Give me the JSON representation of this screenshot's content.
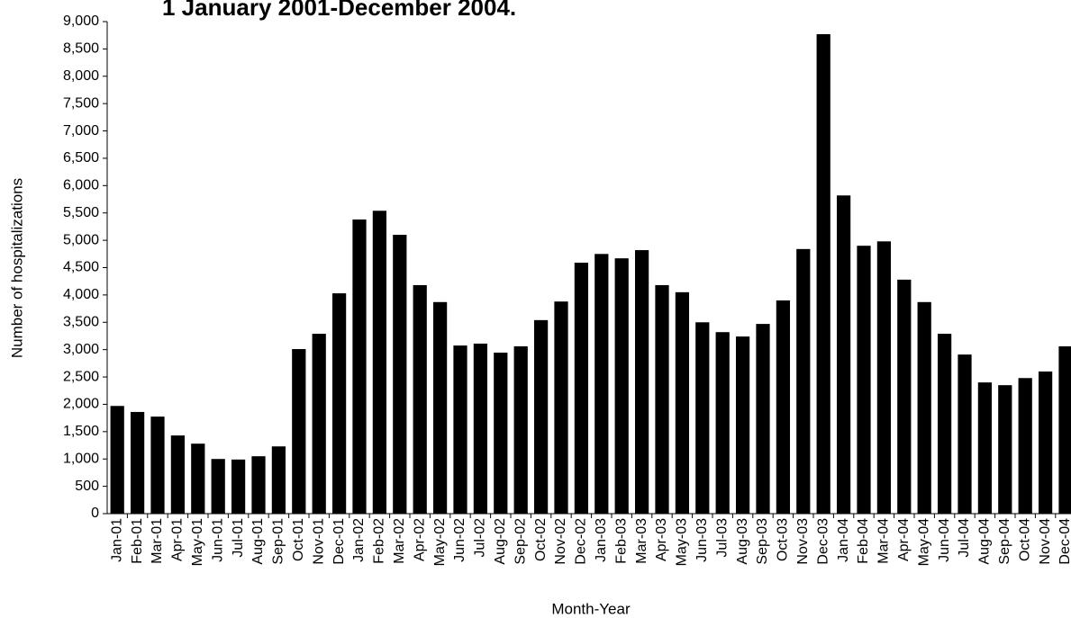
{
  "chart_data": {
    "type": "bar",
    "title": "1 January 2001-December 2004.",
    "x_label": "Month-Year",
    "y_label": "Number of hospitalizations",
    "color": "#000000",
    "categories": [
      "Jan-01",
      "Feb-01",
      "Mar-01",
      "Apr-01",
      "May-01",
      "Jun-01",
      "Jul-01",
      "Aug-01",
      "Sep-01",
      "Oct-01",
      "Nov-01",
      "Dec-01",
      "Jan-02",
      "Feb-02",
      "Mar-02",
      "Apr-02",
      "May-02",
      "Jun-02",
      "Jul-02",
      "Aug-02",
      "Sep-02",
      "Oct-02",
      "Nov-02",
      "Dec-02",
      "Jan-03",
      "Feb-03",
      "Mar-03",
      "Apr-03",
      "May-03",
      "Jun-03",
      "Jul-03",
      "Aug-03",
      "Sep-03",
      "Oct-03",
      "Nov-03",
      "Dec-03",
      "Jan-04",
      "Feb-04",
      "Mar-04",
      "Apr-04",
      "May-04",
      "Jun-04",
      "Jul-04",
      "Aug-04",
      "Sep-04",
      "Oct-04",
      "Nov-04",
      "Dec-04"
    ],
    "values": [
      1970,
      1860,
      1775,
      1430,
      1280,
      1000,
      990,
      1050,
      1230,
      3010,
      3290,
      4030,
      5380,
      5540,
      5100,
      4180,
      3870,
      3075,
      3110,
      2945,
      3060,
      3540,
      3880,
      4590,
      4750,
      4670,
      4820,
      4180,
      4050,
      3500,
      3320,
      3240,
      3470,
      3900,
      4840,
      8770,
      5820,
      4900,
      4980,
      4280,
      3870,
      3290,
      2910,
      2400,
      2350,
      2480,
      2600,
      3060
    ],
    "ylim": [
      0,
      9000
    ],
    "yticks": [
      0,
      500,
      {
        "value": 1000,
        "label": "1,000"
      },
      {
        "value": 1500,
        "label": "1,500"
      },
      {
        "value": 2000,
        "label": "2,000"
      },
      {
        "value": 2500,
        "label": "2,500"
      },
      {
        "value": 3000,
        "label": "3,000"
      },
      {
        "value": 3500,
        "label": "3,500"
      },
      {
        "value": 4000,
        "label": "4,000"
      },
      {
        "value": 4500,
        "label": "4,500"
      },
      {
        "value": 5000,
        "label": "5,000"
      },
      {
        "value": 5500,
        "label": "5,500"
      },
      {
        "value": 6000,
        "label": "6,000"
      },
      {
        "value": 6500,
        "label": "6,500"
      },
      {
        "value": 7000,
        "label": "7,000"
      },
      {
        "value": 7500,
        "label": "7,500"
      },
      {
        "value": 8000,
        "label": "8,000"
      },
      {
        "value": 8500,
        "label": "8,500"
      },
      {
        "value": 9000,
        "label": "9,000"
      }
    ],
    "grid": false
  }
}
